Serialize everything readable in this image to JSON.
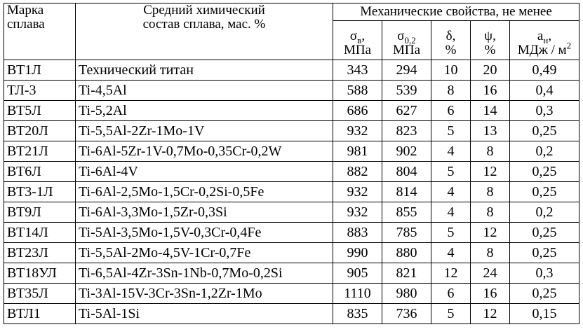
{
  "header": {
    "grade": [
      "Марка",
      "сплава"
    ],
    "composition": [
      "Средний химический",
      "состав сплава, мас. %"
    ],
    "mech_props": "Механические свойства, не менее",
    "sigma_b": {
      "symbol": "σ",
      "sub": "в",
      "comma": ",",
      "unit": "МПа"
    },
    "sigma_02": {
      "symbol": "σ",
      "sub": "0,2",
      "unit": "МПа"
    },
    "delta": {
      "symbol": "δ,",
      "unit": "%"
    },
    "psi": {
      "symbol": "ψ,",
      "unit": "%"
    },
    "a_n": {
      "symbol": "a",
      "sub": "н",
      "comma": ",",
      "unit": "МДж / м",
      "sup": "2"
    }
  },
  "rows": [
    [
      "ВТ1Л",
      "Технический титан",
      "343",
      "294",
      "10",
      "20",
      "0,49"
    ],
    [
      "ТЛ-3",
      "Ti-4,5Al",
      "588",
      "539",
      "8",
      "16",
      "0,4"
    ],
    [
      "ВТ5Л",
      "Ti-5,2Al",
      "686",
      "627",
      "6",
      "14",
      "0,3"
    ],
    [
      "ВТ20Л",
      "Ti-5,5Al-2Zr-1Mo-1V",
      "932",
      "823",
      "5",
      "13",
      "0,25"
    ],
    [
      "ВТ21Л",
      "Ti-6Al-5Zr-1V-0,7Mo-0,35Cr-0,2W",
      "981",
      "902",
      "4",
      "8",
      "0,2"
    ],
    [
      "ВТ6Л",
      "Ti-6Al-4V",
      "882",
      "804",
      "5",
      "12",
      "0,25"
    ],
    [
      "ВТ3-1Л",
      "Ti-6Al-2,5Mo-1,5Cr-0,2Si-0,5Fe",
      "932",
      "814",
      "4",
      "8",
      "0,25"
    ],
    [
      "ВТ9Л",
      "Ti-6Al-3,3Mo-1,5Zr-0,3Si",
      "932",
      "855",
      "4",
      "8",
      "0,2"
    ],
    [
      "ВТ14Л",
      "Ti-5Al-3,5Mo-1,5V-0,3Cr-0,4Fe",
      "883",
      "785",
      "5",
      "12",
      "0,25"
    ],
    [
      "ВТ23Л",
      "Ti-5,5Al-2Mo-4,5V-1Cr-0,7Fe",
      "990",
      "880",
      "4",
      "8",
      "0,25"
    ],
    [
      "ВТ18УЛ",
      "Ti-6,5Al-4Zr-3Sn-1Nb-0,7Mo-0,2Si",
      "905",
      "821",
      "12",
      "24",
      "0,3"
    ],
    [
      "ВТ35Л",
      "Ti-3Al-15V-3Cr-3Sn-1,2Zr-1Mo",
      "1110",
      "980",
      "6",
      "16",
      "0,25"
    ],
    [
      "ВТЛ1",
      "Ti-5Al-1Si",
      "835",
      "736",
      "5",
      "12",
      "0,15"
    ]
  ]
}
